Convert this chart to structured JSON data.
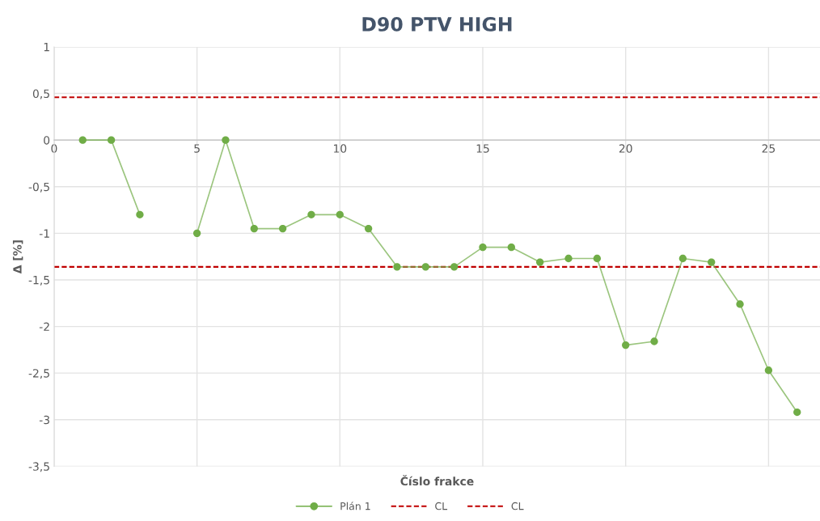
{
  "chart_data": {
    "type": "line",
    "title": "D90 PTV HIGH",
    "xlabel": "Číslo frakce",
    "ylabel": "Δ [%]",
    "x": [
      1,
      2,
      3,
      4,
      5,
      6,
      7,
      8,
      9,
      10,
      11,
      12,
      13,
      14,
      15,
      16,
      17,
      18,
      19,
      20,
      21,
      22,
      23,
      24,
      25,
      26
    ],
    "series": [
      {
        "name": "Plán 1",
        "color": "#70ad47",
        "values": [
          0,
          0,
          -0.8,
          null,
          -1.0,
          0,
          -0.95,
          -0.95,
          -0.8,
          -0.8,
          -0.95,
          -1.36,
          -1.36,
          -1.36,
          -1.15,
          -1.15,
          -1.31,
          -1.27,
          -1.27,
          -2.2,
          -2.16,
          -1.27,
          -1.31,
          -1.76,
          -2.47,
          -2.92
        ]
      }
    ],
    "ref_lines": [
      {
        "axis": "y",
        "value": 0.46,
        "label": "CL",
        "color": "#c00000",
        "line_style": "dashed"
      },
      {
        "axis": "y",
        "value": -1.36,
        "label": "CL",
        "color": "#c00000",
        "line_style": "dashed"
      }
    ],
    "xlim": [
      0,
      26.8
    ],
    "xticks": [
      0,
      5,
      10,
      15,
      20,
      25
    ],
    "ylim": [
      -3.5,
      1
    ],
    "yticks": [
      {
        "value": -3.5,
        "label": "-3,5"
      },
      -3,
      {
        "value": -2.5,
        "label": "-2,5"
      },
      -2,
      {
        "value": -1.5,
        "label": "-1,5"
      },
      -1,
      {
        "value": -0.5,
        "label": "-0,5"
      },
      0,
      {
        "value": 0.5,
        "label": "0,5"
      },
      1
    ],
    "grid": true,
    "legend": "bottom",
    "marker": "circle",
    "line_style": "solid"
  }
}
